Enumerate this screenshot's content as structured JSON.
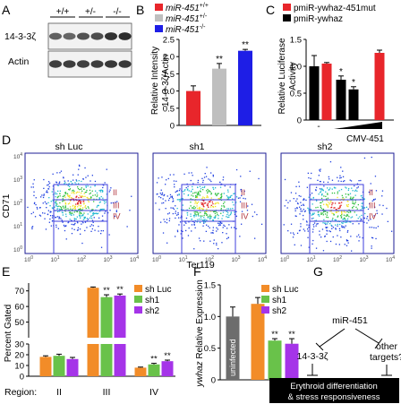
{
  "panels": {
    "A": {
      "letter": "A",
      "genotypes": [
        "+/+",
        "+/-",
        "-/-"
      ],
      "blot_labels": [
        "14-3-3ζ",
        "Actin"
      ],
      "band_intensity": [
        [
          0.55,
          0.5,
          0.65,
          0.7,
          0.9,
          0.95
        ],
        [
          0.8,
          0.82,
          0.8,
          0.82,
          0.85,
          0.85
        ]
      ]
    },
    "B": {
      "letter": "B",
      "legend": [
        "miR-451",
        "miR-451",
        "miR-451"
      ],
      "legend_sup": [
        "+/+",
        "+/-",
        "-/-"
      ],
      "ylabel_lines": [
        "Relative Intensity",
        "14-3-3ζ/Actin"
      ]
    },
    "C": {
      "letter": "C",
      "legend": [
        "pmiR-ywhaz-451mut",
        "pmiR-ywhaz"
      ],
      "ylabel_lines": [
        "Relative Luciferase",
        "Activity"
      ],
      "xlabel_dash": "-",
      "xlabel_ramp": "CMV-451"
    },
    "D": {
      "letter": "D",
      "titles": [
        "sh Luc",
        "sh1",
        "sh2"
      ],
      "ylabel": "CD71",
      "xlabel": "Ter119",
      "gate_labels": [
        "II",
        "III",
        "IV"
      ],
      "tick_exponents": [
        "0",
        "1",
        "2",
        "3",
        "4"
      ]
    },
    "E": {
      "letter": "E",
      "ylabel": "Percent Gated",
      "region_label": "Region:",
      "regions": [
        "II",
        "III",
        "IV"
      ],
      "legend": [
        "sh Luc",
        "sh1",
        "sh2"
      ],
      "stars": [
        "**",
        "**",
        "**",
        "**"
      ]
    },
    "F": {
      "letter": "F",
      "ylabel_italic": "ywhaz",
      "ylabel_rest": " Relative Expression",
      "bar_text": "uninfected",
      "legend": [
        "sh Luc",
        "sh1",
        "sh2"
      ],
      "stars": [
        "**",
        "**"
      ]
    },
    "G": {
      "letter": "G",
      "node_mir": "miR-451",
      "node_1433": "14-3-3ζ",
      "node_other_lines": [
        "other",
        "targets?"
      ],
      "box_lines": [
        "Erythroid differentiation",
        "& stress responsiveness"
      ]
    }
  },
  "colors": {
    "red": "#e8262b",
    "gray": "#bfbfbf",
    "blue": "#1e1ee6",
    "black": "#000000",
    "orange": "#f28c28",
    "green": "#69c24a",
    "purple": "#a534e8",
    "dark_gray": "#6d6d6d",
    "gate": "#3f3fdc",
    "gate_label": "#b0323a"
  },
  "chart_data": [
    {
      "panel": "B",
      "type": "bar",
      "categories": [
        "miR-451+/+",
        "miR-451+/-",
        "miR-451-/-"
      ],
      "values": [
        1.0,
        1.65,
        2.17
      ],
      "errors": [
        0.15,
        0.15,
        0.04
      ],
      "significance": [
        "",
        "**",
        "**"
      ],
      "ylim": [
        0,
        2.5
      ],
      "yticks": [
        0,
        0.5,
        1.0,
        1.5,
        2.0,
        2.5
      ],
      "ylabel": "Relative Intensity 14-3-3ζ/Actin"
    },
    {
      "panel": "C",
      "type": "bar",
      "series": [
        {
          "name": "pmiR-ywhaz",
          "values": [
            1.0,
            0.95,
            0.75,
            0.57
          ]
        },
        {
          "name": "pmiR-ywhaz-451mut",
          "values": [
            1.05,
            null,
            null,
            1.25
          ]
        }
      ],
      "errors": [
        [
          0.2,
          0.03,
          0.07,
          0.05
        ],
        [
          0.02,
          null,
          null,
          0.05
        ]
      ],
      "significance": [
        "",
        "",
        "*",
        "*"
      ],
      "ylim": [
        0,
        1.5
      ],
      "yticks": [
        0,
        0.5,
        1.0,
        1.5
      ],
      "ylabel": "Relative Luciferase Activity"
    },
    {
      "panel": "E",
      "type": "bar",
      "categories": [
        "II",
        "III",
        "IV"
      ],
      "series": [
        {
          "name": "sh Luc",
          "values": [
            18,
            72,
            8
          ]
        },
        {
          "name": "sh1",
          "values": [
            19,
            66,
            11
          ]
        },
        {
          "name": "sh2",
          "values": [
            16,
            67,
            14
          ]
        }
      ],
      "errors": [
        [
          1,
          0.5,
          0.5
        ],
        [
          1.5,
          1.5,
          1
        ],
        [
          1.5,
          1,
          1
        ]
      ],
      "significance": {
        "III": [
          "",
          "**",
          "**"
        ],
        "IV": [
          "",
          "**",
          "**"
        ]
      },
      "yticks_lower": [
        0,
        10,
        20,
        30
      ],
      "yticks_upper": [
        50,
        60,
        70
      ],
      "ylabel": "Percent Gated"
    },
    {
      "panel": "F",
      "type": "bar",
      "categories": [
        "uninfected",
        "sh Luc",
        "sh1",
        "sh2"
      ],
      "values": [
        1.0,
        1.2,
        0.62,
        0.57
      ],
      "errors": [
        0.15,
        0.1,
        0.03,
        0.08
      ],
      "significance": [
        "",
        "",
        "**",
        "**"
      ],
      "ylim": [
        0,
        1.5
      ],
      "yticks": [
        0,
        0.5,
        1.0,
        1.5
      ],
      "ylabel": "ywhaz Relative Expression"
    }
  ]
}
